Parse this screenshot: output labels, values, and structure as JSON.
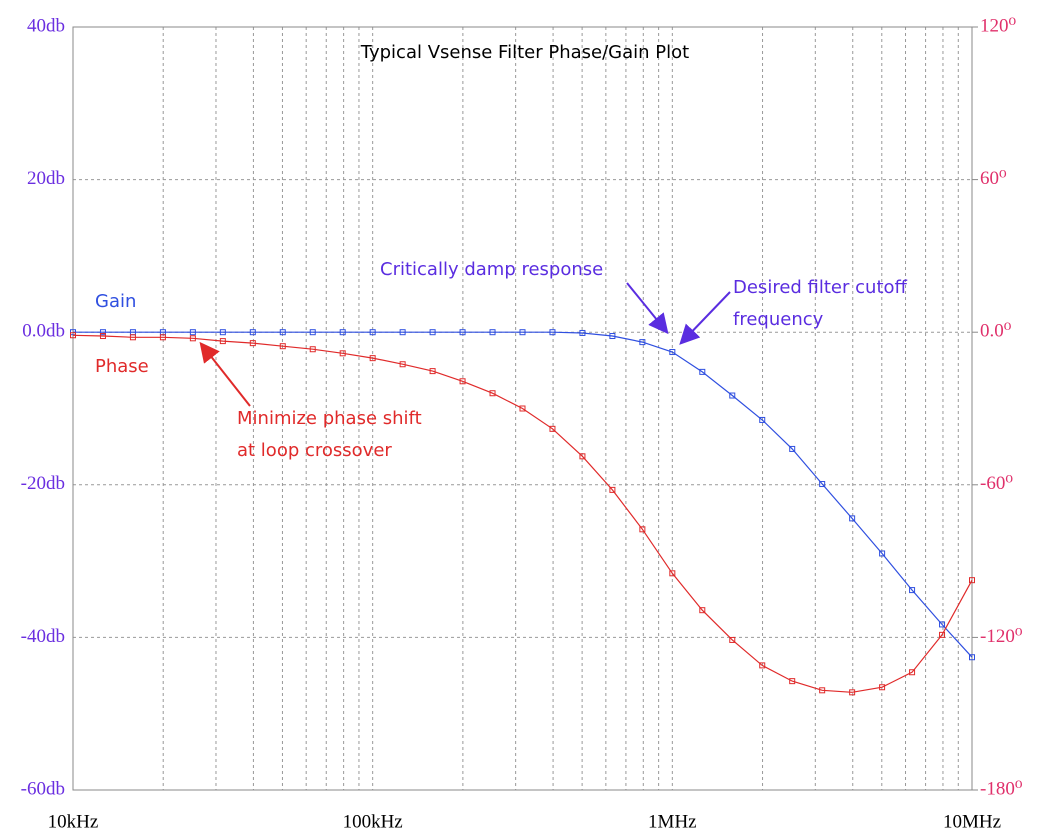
{
  "chart_data": {
    "type": "line",
    "title": "Typical Vsense Filter Phase/Gain Plot",
    "xscale": "log",
    "grid": true,
    "x": [
      10000,
      12589,
      15849,
      19953,
      25119,
      31623,
      39811,
      50119,
      63096,
      79433,
      100000,
      125893,
      158489,
      199526,
      251189,
      316228,
      398107,
      501187,
      630957,
      794328,
      1000000,
      1258925,
      1584893,
      1995262,
      2511886,
      3162278,
      3981072,
      5011872,
      6309573,
      7943282,
      10000000
    ],
    "xlim": [
      10000,
      10000000
    ],
    "xticks": [
      {
        "value": 10000,
        "label": "10kHz"
      },
      {
        "value": 100000,
        "label": "100kHz"
      },
      {
        "value": 1000000,
        "label": "1MHz"
      },
      {
        "value": 10000000,
        "label": "10MHz"
      }
    ],
    "ylim": [
      -60,
      40
    ],
    "yticks": [
      {
        "value": -60,
        "label": "-60db"
      },
      {
        "value": -40,
        "label": "-40db"
      },
      {
        "value": -20,
        "label": "-20db"
      },
      {
        "value": 0,
        "label": "0.0db"
      },
      {
        "value": 20,
        "label": "20db"
      },
      {
        "value": 40,
        "label": "40db"
      }
    ],
    "y2lim": [
      -180,
      120
    ],
    "y2ticks": [
      {
        "value": -180,
        "label": "-180⁰"
      },
      {
        "value": -120,
        "label": "-120⁰"
      },
      {
        "value": -60,
        "label": "-60⁰"
      },
      {
        "value": 0,
        "label": "0.0⁰"
      },
      {
        "value": 60,
        "label": "60⁰"
      },
      {
        "value": 120,
        "label": "120⁰"
      }
    ],
    "series": [
      {
        "name": "Gain",
        "color": "#2f4fe0",
        "values": [
          0,
          0,
          0,
          0,
          0,
          0,
          0,
          0,
          0,
          0,
          0,
          0,
          0,
          0,
          0,
          0,
          0,
          -0.1,
          -0.5,
          -1.3,
          -2.6,
          -5.2,
          -8.3,
          -11.5,
          -15.3,
          -19.9,
          -24.4,
          -29.0,
          -33.8,
          -38.3,
          -42.6
        ]
      },
      {
        "name": "Phase",
        "color": "#e02a2a",
        "axis": "y2",
        "values": [
          -1.2,
          -1.5,
          -2,
          -2,
          -2.4,
          -3.5,
          -4.3,
          -5.5,
          -6.7,
          -8.3,
          -10.2,
          -12.6,
          -15.3,
          -19.3,
          -24,
          -30,
          -38,
          -48.8,
          -62,
          -77.5,
          -94.8,
          -109.3,
          -121,
          -131,
          -137.2,
          -140.8,
          -141.6,
          -139.6,
          -133.7,
          -119,
          -97.5
        ]
      }
    ],
    "annotations": [
      {
        "lines": [
          "Critically damp response"
        ]
      },
      {
        "lines": [
          "Desired filter cutoff",
          "frequency"
        ]
      },
      {
        "lines": [
          "Minimize phase shift",
          "at loop crossover"
        ]
      }
    ]
  }
}
